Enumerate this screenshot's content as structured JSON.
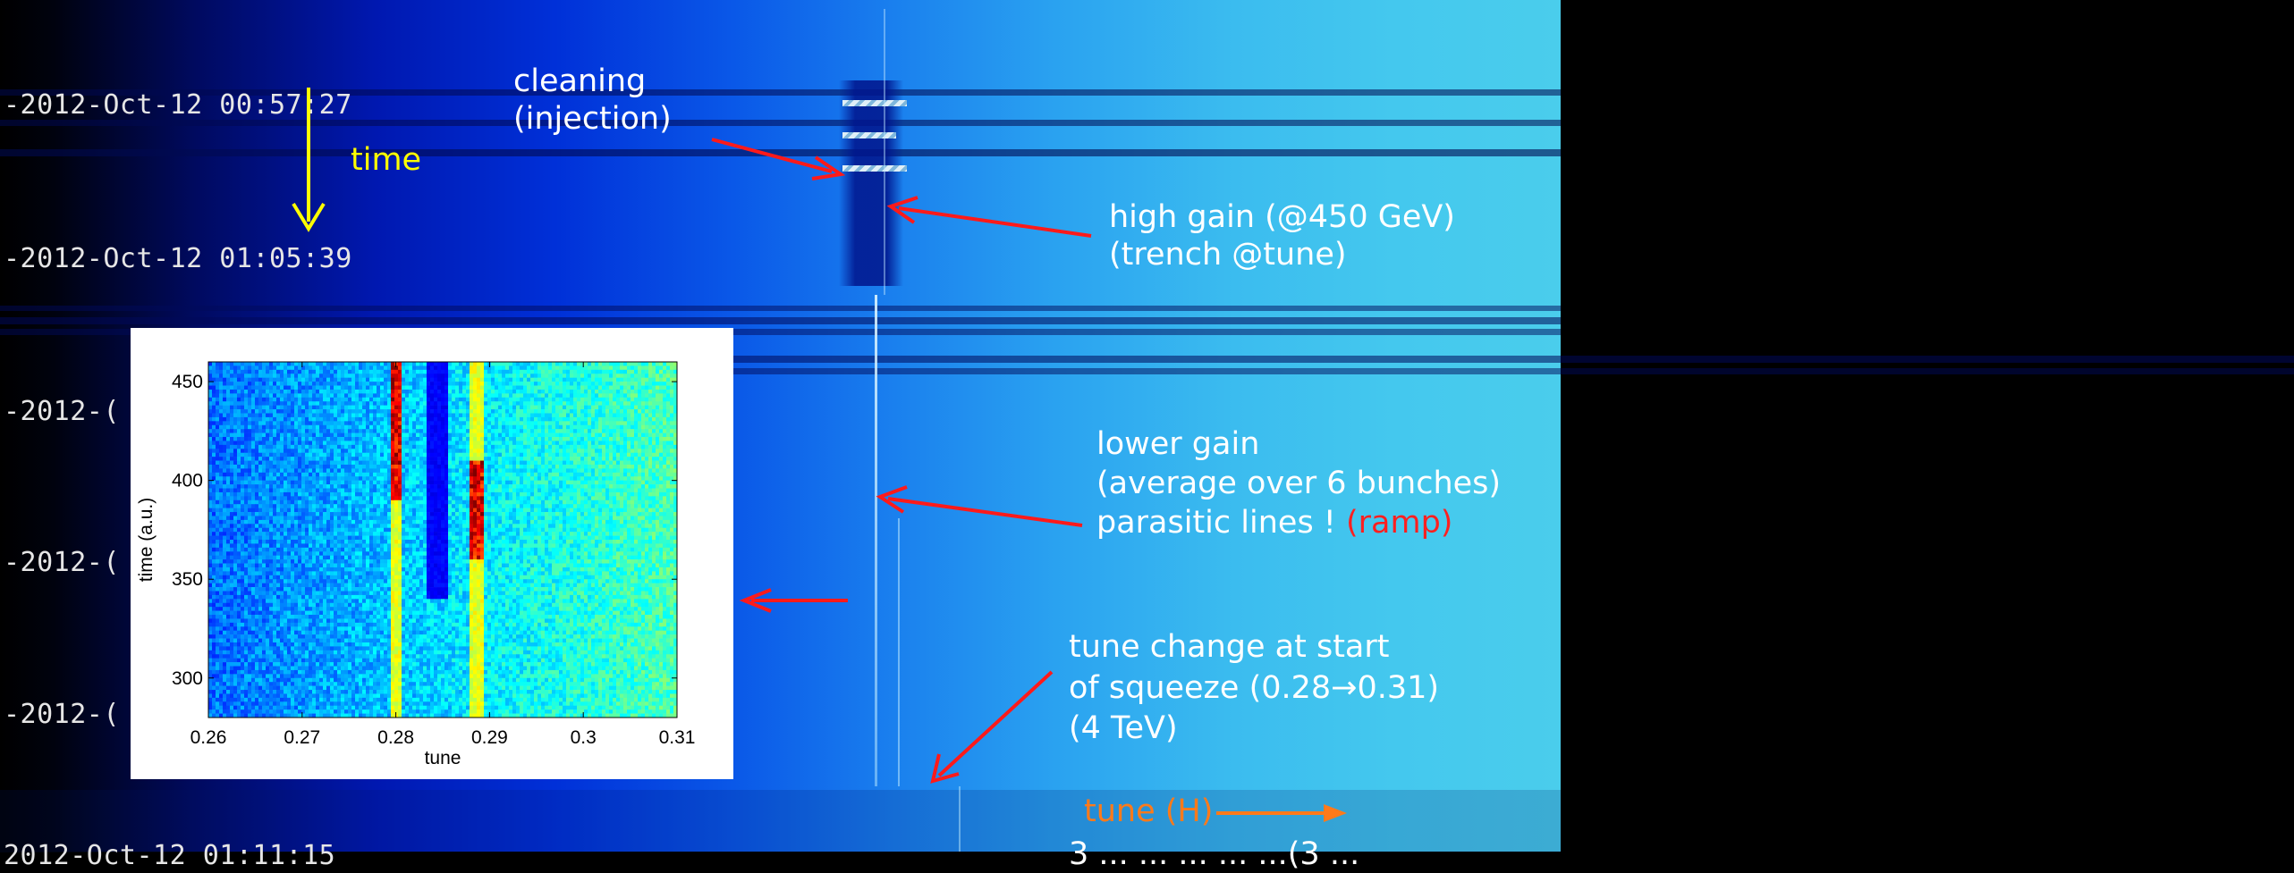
{
  "timestamps": [
    "-2012-Oct-12 00:57:27",
    "-2012-Oct-12 01:05:39",
    "-2012-(",
    "-2012-(",
    "-2012-(",
    "2012-Oct-12 01:11:15"
  ],
  "labels": {
    "time": "time",
    "cleaning_line1": "cleaning",
    "cleaning_line2": "(injection)",
    "high_gain_line1": "high gain (@450 GeV)",
    "high_gain_line2": "(trench @tune)",
    "lower_gain_line1": "lower gain",
    "lower_gain_line2": "(average over 6 bunches)",
    "lower_gain_line3": "parasitic lines !",
    "lower_gain_ramp": "(ramp)",
    "tune_change_line1": "tune change at start",
    "tune_change_line2": "of squeeze (0.28→0.31)",
    "tune_change_line3": "(4 TeV)",
    "tune_h": "tune (H)",
    "bottom_cut": "3 ... ... ... ... ...(3 ..."
  },
  "colors": {
    "annotation_arrow": "#ff1a1a",
    "time_label": "#ffff00",
    "tune_label": "#ff7a1a",
    "ramp_text": "#ff2020"
  },
  "chart_data": {
    "type": "heatmap",
    "title": "",
    "xlabel": "tune",
    "ylabel": "time (a.u.)",
    "xlim": [
      0.26,
      0.31
    ],
    "ylim": [
      280,
      460
    ],
    "x_ticks": [
      "0.26",
      "0.27",
      "0.28",
      "0.29",
      "0.3",
      "0.31"
    ],
    "y_ticks": [
      "300",
      "350",
      "400",
      "450"
    ],
    "x_tick_values": [
      0.26,
      0.27,
      0.28,
      0.29,
      0.3,
      0.31
    ],
    "y_tick_values": [
      300,
      350,
      400,
      450
    ],
    "grid": false,
    "colormap": "jet",
    "lines": [
      {
        "tune": 0.28,
        "t_start": 280,
        "t_end": 460,
        "intensity_hot_range": [
          390,
          460
        ]
      },
      {
        "tune": 0.2885,
        "t_start": 280,
        "t_end": 460,
        "intensity_hot_range": [
          360,
          410
        ]
      }
    ],
    "dark_trench": {
      "tune": 0.2845,
      "t_start": 340,
      "t_end": 460
    }
  }
}
